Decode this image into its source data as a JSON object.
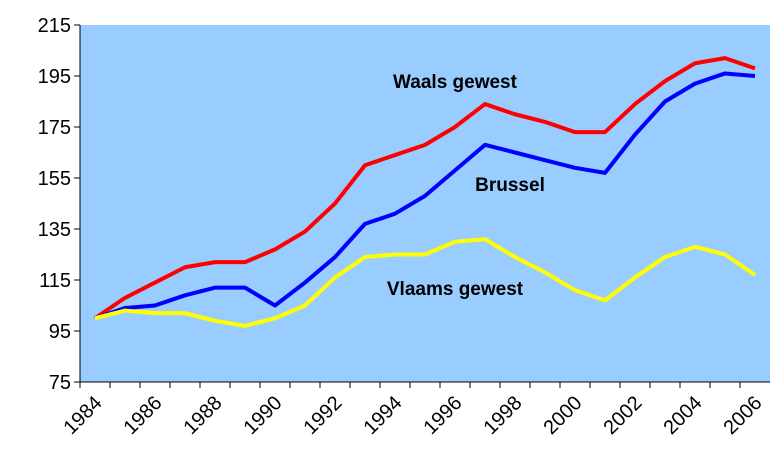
{
  "chart_data": {
    "type": "line",
    "categories": [
      "1984",
      null,
      "1986",
      null,
      "1988",
      null,
      "1990",
      null,
      "1992",
      null,
      "1994",
      null,
      "1996",
      null,
      "1998",
      null,
      "2000",
      null,
      "2002",
      null,
      "2004",
      null,
      "2006"
    ],
    "series": [
      {
        "name": "Waals gewest",
        "color": "#ff0000",
        "values": [
          100,
          108,
          114,
          120,
          122,
          122,
          127,
          134,
          145,
          160,
          164,
          168,
          175,
          184,
          180,
          177,
          173,
          173,
          184,
          193,
          200,
          202,
          198
        ]
      },
      {
        "name": "Brussel",
        "color": "#0000ff",
        "values": [
          100,
          104,
          105,
          109,
          112,
          112,
          105,
          114,
          124,
          137,
          141,
          148,
          158,
          168,
          165,
          162,
          159,
          157,
          172,
          185,
          192,
          196,
          195
        ]
      },
      {
        "name": "Vlaams gewest",
        "color": "#ffff00",
        "values": [
          100,
          103,
          102,
          102,
          99,
          97,
          100,
          105,
          116,
          124,
          125,
          125,
          130,
          131,
          124,
          118,
          111,
          107,
          116,
          124,
          128,
          125,
          117
        ]
      }
    ],
    "ylim": [
      75,
      215
    ],
    "yticks": [
      75,
      95,
      115,
      135,
      155,
      175,
      195,
      215
    ],
    "plot_background": "#99ccff"
  }
}
